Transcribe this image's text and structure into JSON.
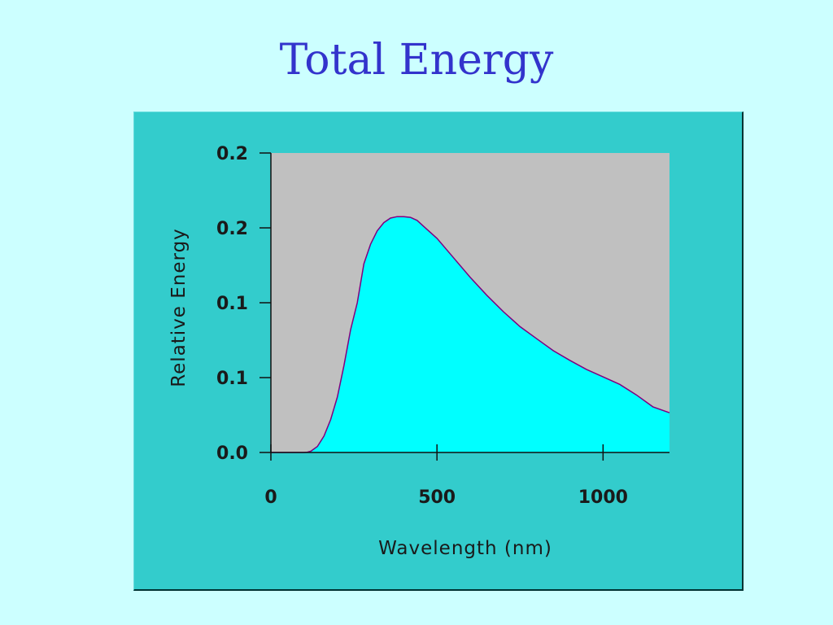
{
  "slide": {
    "title": "Total Energy",
    "background_color": "#ccffff",
    "title_color": "#3333cc"
  },
  "chart_data": {
    "type": "area",
    "title": "",
    "xlabel": "Wavelength (nm)",
    "ylabel": "Relative Energy",
    "xlim": [
      0,
      1200
    ],
    "ylim": [
      0,
      0.2
    ],
    "x_ticks": [
      0,
      500,
      1000
    ],
    "x_tick_labels": [
      "0",
      "500",
      "1000"
    ],
    "y_ticks": [
      0,
      0.05,
      0.1,
      0.15,
      0.2
    ],
    "y_tick_labels": [
      "0.0",
      "0.1",
      "0.1",
      "0.2",
      "0.2"
    ],
    "grid": false,
    "legend": "none",
    "colors": {
      "panel": "#33cccc",
      "plot_background": "#c0c0c0",
      "fill": "#00ffff",
      "line": "#800080"
    },
    "series": [
      {
        "x": [
          0,
          100,
          110,
          120,
          140,
          160,
          180,
          200,
          220,
          240,
          260,
          280,
          300,
          320,
          340,
          360,
          380,
          400,
          420,
          440,
          460,
          500,
          550,
          600,
          650,
          700,
          750,
          800,
          850,
          900,
          950,
          1000,
          1050,
          1100,
          1150,
          1200
        ],
        "y": [
          0,
          0,
          0.0002,
          0.0008,
          0.004,
          0.011,
          0.022,
          0.037,
          0.058,
          0.082,
          0.1,
          0.126,
          0.139,
          0.148,
          0.1535,
          0.1565,
          0.1575,
          0.1575,
          0.157,
          0.155,
          0.151,
          0.143,
          0.13,
          0.117,
          0.105,
          0.094,
          0.084,
          0.076,
          0.068,
          0.0615,
          0.0555,
          0.0505,
          0.0455,
          0.0385,
          0.0305,
          0.0265
        ]
      }
    ]
  }
}
